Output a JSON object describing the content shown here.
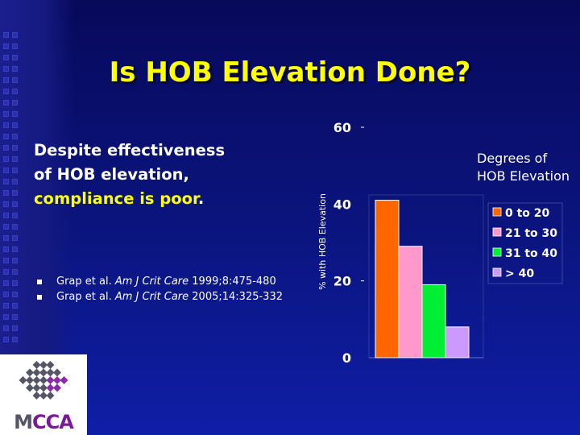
{
  "slide": {
    "title": "Is HOB Elevation Done?",
    "body_line1": "Despite effectiveness",
    "body_line2": "of HOB elevation,",
    "body_line3": "compliance is poor",
    "body_line3_end": ".",
    "references": [
      {
        "pre": "Grap et al. ",
        "journal": "Am J Crit Care",
        "post": " 1999;8:475-480"
      },
      {
        "pre": "Grap et al. ",
        "journal": "Am J Crit Care",
        "post": " 2005;14:325-332"
      }
    ],
    "logo_m": "M",
    "logo_cca": "CCA",
    "colors": {
      "title": "#ffff00",
      "highlight": "#ffff00",
      "background": "#0b1580"
    }
  },
  "chart_data": {
    "type": "bar",
    "title": "",
    "xlabel": "",
    "ylabel": "% with HOB Elevation",
    "ylim": [
      0,
      60
    ],
    "yticks": [
      "0",
      "20",
      "40",
      "60"
    ],
    "legend_title": "Degrees of HOB Elevation",
    "legend_title_line1": "Degrees of",
    "legend_title_line2": "HOB Elevation",
    "legend_position": "right",
    "categories": [
      "0 to 20",
      "21 to 30",
      "31 to 40",
      "> 40"
    ],
    "values": [
      41,
      29,
      19,
      8
    ],
    "colors": [
      "#ff6600",
      "#ff99cc",
      "#00ee33",
      "#cc99ff"
    ]
  }
}
